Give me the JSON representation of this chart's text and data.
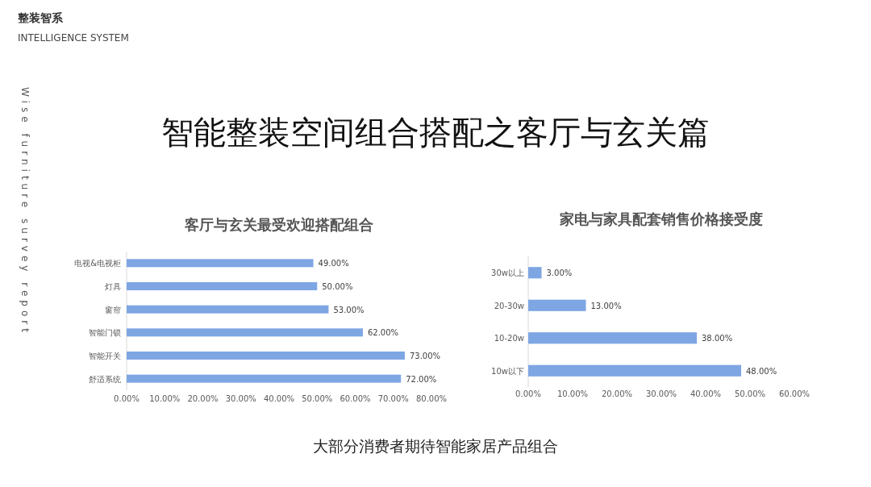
{
  "chart_data": [
    {
      "type": "bar",
      "orientation": "horizontal",
      "title": "客厅与玄关最受欢迎搭配组合",
      "categories": [
        "电视&电视柜",
        "灯具",
        "窗帘",
        "智能门锁",
        "智能开关",
        "舒适系统"
      ],
      "values": [
        49,
        50,
        53,
        62,
        73,
        72
      ],
      "value_labels": [
        "49.00%",
        "50.00%",
        "53.00%",
        "62.00%",
        "73.00%",
        "72.00%"
      ],
      "color": "#7ea6e3",
      "xlim": [
        0,
        80
      ],
      "xticks": [
        {
          "value": 0,
          "label": "0.00%"
        },
        {
          "value": 10,
          "label": "10.00%"
        },
        {
          "value": 20,
          "label": "20.00%"
        },
        {
          "value": 30,
          "label": "30.00%"
        },
        {
          "value": 40,
          "label": "40.00%"
        },
        {
          "value": 50,
          "label": "50.00%"
        },
        {
          "value": 60,
          "label": "60.00%"
        },
        {
          "value": 70,
          "label": "70.00%"
        },
        {
          "value": 80,
          "label": "80.00%"
        }
      ],
      "annotations": [
        "整装智系",
        "INTELLIGENCE SYSTEM",
        "Wise furniture survey report",
        "智能整装空间组合搭配之客厅与玄关篇",
        "大部分消费者期待智能家居产品组合"
      ]
    },
    {
      "type": "bar",
      "orientation": "horizontal",
      "title": "家电与家具配套销售价格接受度",
      "categories": [
        "30w以上",
        "20-30w",
        "10-20w",
        "10w以下"
      ],
      "values": [
        3,
        13,
        38,
        48
      ],
      "value_labels": [
        "3.00%",
        "13.00%",
        "38.00%",
        "48.00%"
      ],
      "color": "#7ea6e3",
      "xlim": [
        0,
        60
      ],
      "xticks": [
        {
          "value": 0,
          "label": "0.00%"
        },
        {
          "value": 10,
          "label": "10.00%"
        },
        {
          "value": 20,
          "label": "20.00%"
        },
        {
          "value": 30,
          "label": "30.00%"
        },
        {
          "value": 40,
          "label": "40.00%"
        },
        {
          "value": 50,
          "label": "50.00%"
        },
        {
          "value": 60,
          "label": "60.00%"
        }
      ]
    }
  ]
}
